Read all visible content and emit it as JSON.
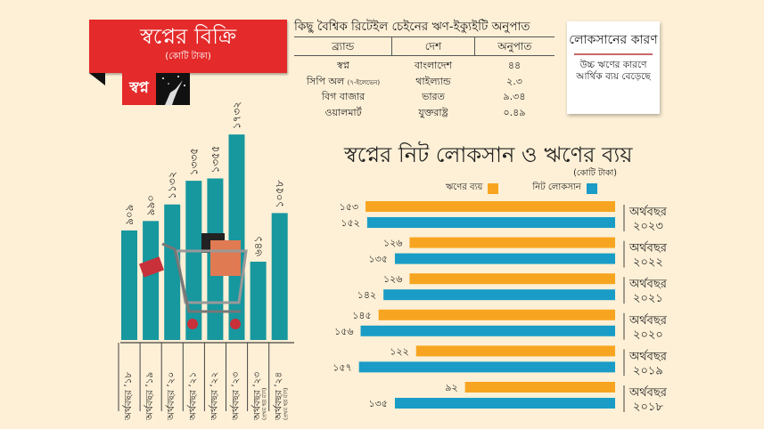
{
  "colors": {
    "banner": "#e42a2a",
    "vbar": "#17979e",
    "orange": "#f7a520",
    "blue": "#1a9cc6",
    "background": "#fdf0d6"
  },
  "sales": {
    "title": "স্বপ্নের বিক্রি",
    "unit": "(কোটি টাকা)",
    "logo_text": "স্বপ্ন"
  },
  "table": {
    "title": "কিছু বৈশ্বিক রিটেইল চেইনের ঋণ-ইক্যুইটি অনুপাত",
    "headers": [
      "ব্র্যান্ড",
      "দেশ",
      "অনুপাত"
    ],
    "rows": [
      {
        "brand": "স্বপ্ন",
        "note": "",
        "country": "বাংলাদেশ",
        "ratio": "৪৪"
      },
      {
        "brand": "সিপি অল",
        "note": "(৭-ইলেভেন)",
        "country": "থাইল্যান্ড",
        "ratio": "২.৩"
      },
      {
        "brand": "বিগ বাজার",
        "note": "",
        "country": "ভারত",
        "ratio": "৯.৩৪"
      },
      {
        "brand": "ওয়ালমার্ট",
        "note": "",
        "country": "যুক্তরাষ্ট্র",
        "ratio": "০.৪৯"
      }
    ]
  },
  "loss_reason": {
    "title": "লোকসানের কারণ",
    "body": "উচ্চ ঋণের কারণে আর্থিক ব্যয় বেড়েছে"
  },
  "chart_data": [
    {
      "type": "bar",
      "title": "স্বপ্নের বিক্রি",
      "unit": "(কোটি টাকা)",
      "orientation": "vertical",
      "categories": [
        "অর্থবছর ’১৮",
        "অর্থবছর ’১৯",
        "অর্থবছর ’২০",
        "অর্থবছর ’২১",
        "অর্থবছর ’২২",
        "অর্থবছর ’২৩",
        "অর্থবছর ’২৩",
        "অর্থবছর ’২৪"
      ],
      "category_notes": [
        "",
        "",
        "",
        "",
        "",
        "",
        "(প্রথম ছয় মাস)",
        "(প্রথম ছয় মাস)"
      ],
      "values": [
        909,
        990,
        1132,
        1335,
        1355,
        1732,
        641,
        1058
      ],
      "value_labels": [
        "৯০৯",
        "৯৯০",
        "১১৩২",
        "১৩৩৫",
        "১৩৫৫",
        "১৭৩২",
        "৬৪১",
        "১০৫৮"
      ],
      "color": "#17979e"
    },
    {
      "type": "bar",
      "orientation": "horizontal",
      "title": "স্বপ্নের নিট লোকসান ও ঋণের ব্যয়",
      "unit": "(কোটি টাকা)",
      "categories": [
        {
          "line1": "অর্থবছর",
          "line2": "২০২৩"
        },
        {
          "line1": "অর্থবছর",
          "line2": "২০২২"
        },
        {
          "line1": "অর্থবছর",
          "line2": "২০২১"
        },
        {
          "line1": "অর্থবছর",
          "line2": "২০২০"
        },
        {
          "line1": "অর্থবছর",
          "line2": "২০১৯"
        },
        {
          "line1": "অর্থবছর",
          "line2": "২০১৮"
        }
      ],
      "legend_placement": "top-right",
      "series": [
        {
          "name": "ঋণের ব্যয়",
          "color": "#f7a520",
          "values": [
            153,
            126,
            126,
            145,
            122,
            92
          ],
          "labels": [
            "১৫৩",
            "১২৬",
            "১২৬",
            "১৪৫",
            "১২২",
            "৯২"
          ]
        },
        {
          "name": "নিট লোকসান",
          "color": "#1a9cc6",
          "values": [
            152,
            135,
            142,
            156,
            157,
            135
          ],
          "labels": [
            "১৫২",
            "১৩৫",
            "১৪২",
            "১৫৬",
            "১৫৭",
            "১৩৫"
          ]
        }
      ]
    }
  ]
}
